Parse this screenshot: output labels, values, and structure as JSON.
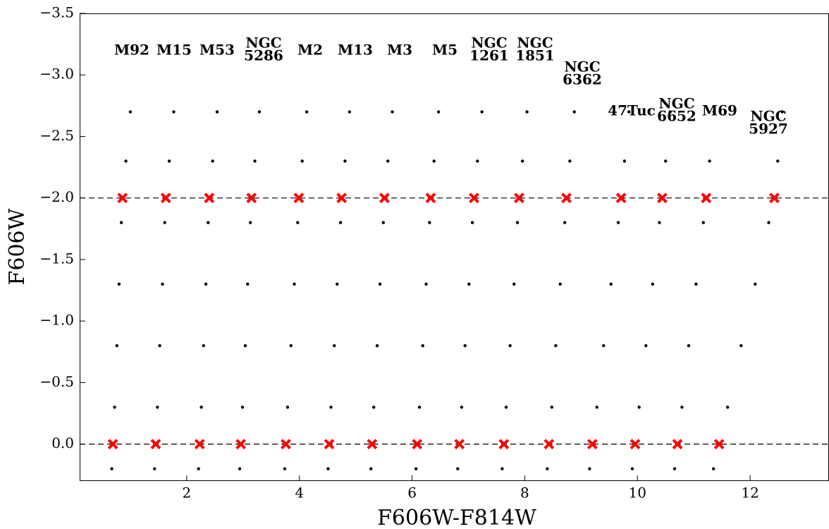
{
  "chart_data": {
    "type": "scatter",
    "xlabel": "F606W-F814W",
    "ylabel": "F606W",
    "xlim": [
      0.1,
      13.4
    ],
    "ylim": [
      0.3,
      -3.5
    ],
    "xticks": [
      2,
      4,
      6,
      8,
      10,
      12
    ],
    "yticks": [
      {
        "value": -3.5,
        "label": "−3.5"
      },
      {
        "value": -3.0,
        "label": "−3.0"
      },
      {
        "value": -2.5,
        "label": "−2.5"
      },
      {
        "value": -2.0,
        "label": "−2.0"
      },
      {
        "value": -1.5,
        "label": "−1.5"
      },
      {
        "value": -1.0,
        "label": "−1.0"
      },
      {
        "value": -0.5,
        "label": "−0.5"
      },
      {
        "value": 0.0,
        "label": "0.0"
      }
    ],
    "hlines": [
      -2,
      0
    ],
    "annotations": [
      [
        "M92"
      ],
      [
        "M15"
      ],
      [
        "M53"
      ],
      [
        "NGC",
        "5286"
      ],
      [
        "M2"
      ],
      [
        "M13"
      ],
      [
        "M3"
      ],
      [
        "M5"
      ],
      [
        "NGC",
        "1261"
      ],
      [
        "NGC",
        "1851"
      ],
      [
        "NGC",
        "6362"
      ],
      [
        "47Tuc"
      ],
      [
        "NGC",
        "6652"
      ],
      [
        "M69"
      ],
      [
        "NGC",
        "5927"
      ]
    ],
    "series": [
      {
        "color": "#000000",
        "marker": "dot",
        "x": [
          0.67,
          0.72,
          0.76,
          0.8,
          0.84,
          0.92,
          1.0,
          1.43,
          1.48,
          1.52,
          1.57,
          1.61,
          1.69,
          1.77,
          2.21,
          2.26,
          2.3,
          2.34,
          2.38,
          2.46,
          2.54,
          2.94,
          2.99,
          3.04,
          3.08,
          3.13,
          3.21,
          3.29,
          3.74,
          3.79,
          3.85,
          3.91,
          3.97,
          4.05,
          4.13,
          4.51,
          4.56,
          4.62,
          4.67,
          4.73,
          4.81,
          4.89,
          5.27,
          5.32,
          5.38,
          5.43,
          5.49,
          5.57,
          5.65,
          6.07,
          6.13,
          6.19,
          6.25,
          6.31,
          6.39,
          6.47,
          6.81,
          6.88,
          6.94,
          7.01,
          7.07,
          7.16,
          7.24,
          7.6,
          7.67,
          7.74,
          7.81,
          7.87,
          7.96,
          8.04,
          8.4,
          8.48,
          8.55,
          8.63,
          8.71,
          8.8,
          8.88,
          9.15,
          9.28,
          9.4,
          9.53,
          9.66,
          9.77,
          9.85,
          9.91,
          10.03,
          10.15,
          10.27,
          10.39,
          10.5,
          10.58,
          10.66,
          10.79,
          10.91,
          11.04,
          11.17,
          11.28,
          11.36,
          11.35,
          11.6,
          11.84,
          12.09,
          12.33,
          12.49,
          12.57
        ],
        "y": [
          0.2,
          -0.3,
          -0.8,
          -1.3,
          -1.8,
          -2.3,
          -2.7,
          0.2,
          -0.3,
          -0.8,
          -1.3,
          -1.8,
          -2.3,
          -2.7,
          0.2,
          -0.3,
          -0.8,
          -1.3,
          -1.8,
          -2.3,
          -2.7,
          0.2,
          -0.3,
          -0.8,
          -1.3,
          -1.8,
          -2.3,
          -2.7,
          0.2,
          -0.3,
          -0.8,
          -1.3,
          -1.8,
          -2.3,
          -2.7,
          0.2,
          -0.3,
          -0.8,
          -1.3,
          -1.8,
          -2.3,
          -2.7,
          0.2,
          -0.3,
          -0.8,
          -1.3,
          -1.8,
          -2.3,
          -2.7,
          0.2,
          -0.3,
          -0.8,
          -1.3,
          -1.8,
          -2.3,
          -2.7,
          0.2,
          -0.3,
          -0.8,
          -1.3,
          -1.8,
          -2.3,
          -2.7,
          0.2,
          -0.3,
          -0.8,
          -1.3,
          -1.8,
          -2.3,
          -2.7,
          0.2,
          -0.3,
          -0.8,
          -1.3,
          -1.8,
          -2.3,
          -2.7,
          0.2,
          -0.3,
          -0.8,
          -1.3,
          -1.8,
          -2.3,
          -2.7,
          0.2,
          -0.3,
          -0.8,
          -1.3,
          -1.8,
          -2.3,
          -2.7,
          0.2,
          -0.3,
          -0.8,
          -1.3,
          -1.8,
          -2.3,
          -2.7,
          0.2,
          -0.3,
          -0.8,
          -1.3,
          -1.8,
          -2.3,
          -2.7
        ]
      },
      {
        "color": "#ff0000",
        "marker": "x",
        "x": [
          0.86,
          1.63,
          2.4,
          3.15,
          3.99,
          4.75,
          5.51,
          6.33,
          7.1,
          7.9,
          8.74,
          9.71,
          10.44,
          11.22,
          12.43,
          0.69,
          1.45,
          2.23,
          2.96,
          3.76,
          4.53,
          5.29,
          6.09,
          6.84,
          7.63,
          8.43,
          9.2,
          9.96,
          10.71,
          11.45
        ],
        "y": [
          -2,
          -2,
          -2,
          -2,
          -2,
          -2,
          -2,
          -2,
          -2,
          -2,
          -2,
          -2,
          -2,
          -2,
          -2,
          0,
          0,
          0,
          0,
          0,
          0,
          0,
          0,
          0,
          0,
          0,
          0,
          0,
          0,
          0
        ]
      }
    ]
  }
}
